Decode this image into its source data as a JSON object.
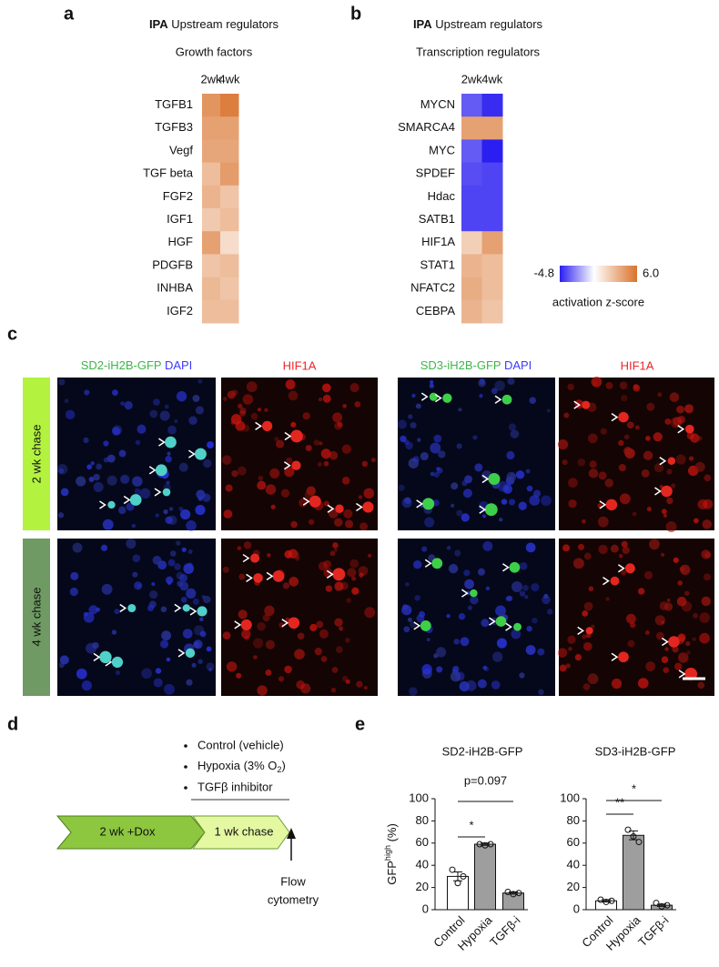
{
  "panel_letters": [
    "a",
    "b",
    "c",
    "d",
    "e"
  ],
  "chart_data": [
    {
      "type": "heatmap",
      "title_bold": "IPA",
      "title": "Upstream regulators",
      "subtitle": "Growth factors",
      "columns": [
        "2wk",
        "4wk"
      ],
      "rows": [
        "TGFB1",
        "TGFB3",
        "Vegf",
        "TGF beta",
        "FGF2",
        "IGF1",
        "HGF",
        "PDGFB",
        "INHBA",
        "IGF2"
      ],
      "values": [
        [
          4.5,
          5.5
        ],
        [
          4.0,
          4.0
        ],
        [
          3.8,
          3.8
        ],
        [
          2.8,
          4.2
        ],
        [
          3.2,
          2.5
        ],
        [
          2.3,
          2.8
        ],
        [
          4.0,
          1.5
        ],
        [
          2.5,
          2.8
        ],
        [
          3.0,
          2.5
        ],
        [
          2.8,
          2.8
        ]
      ],
      "zlim": [
        -4.8,
        6
      ],
      "colors": [
        "#2b1ef0",
        "#ffffff",
        "#d9722b"
      ]
    },
    {
      "type": "heatmap",
      "title_bold": "IPA",
      "title": "Upstream regulators",
      "subtitle": "Transcription regulators",
      "columns": [
        "2wk",
        "4wk"
      ],
      "rows": [
        "MYCN",
        "SMARCA4",
        "MYC",
        "SPDEF",
        "Hdac",
        "SATB1",
        "HIF1A",
        "STAT1",
        "NFATC2",
        "CEBPA"
      ],
      "values": [
        [
          -3.5,
          -4.5
        ],
        [
          4.0,
          4.0
        ],
        [
          -3.5,
          -4.8
        ],
        [
          -3.8,
          -4.0
        ],
        [
          -4.0,
          -4.0
        ],
        [
          -4.0,
          -4.0
        ],
        [
          2.0,
          4.0
        ],
        [
          3.2,
          2.8
        ],
        [
          3.5,
          2.8
        ],
        [
          3.2,
          2.5
        ]
      ],
      "zlim": [
        -4.8,
        6
      ],
      "colors": [
        "#2b1ef0",
        "#ffffff",
        "#d9722b"
      ],
      "zticks": [
        -4.8,
        {
          "value": 6,
          "label": "6.0"
        }
      ],
      "zlabel": "activation z-score"
    },
    {
      "type": "bar",
      "title": "SD2-iH2B-GFP",
      "categories": [
        "Control",
        "Hypoxia",
        "TGFβ-i"
      ],
      "values": [
        30,
        59,
        15
      ],
      "errors": [
        4,
        1,
        1
      ],
      "points": [
        [
          36,
          24,
          30
        ],
        [
          59,
          58,
          59
        ],
        [
          16,
          14,
          15
        ]
      ],
      "colors": [
        "#ffffff",
        "#9e9e9e",
        "#9e9e9e"
      ],
      "ylim": [
        0,
        100
      ],
      "yticks": [
        0,
        20,
        40,
        60,
        80,
        100
      ],
      "ylabel": [
        "GFP",
        "high",
        " (%)"
      ],
      "annotations": [
        {
          "text": "*",
          "between": [
            "Control",
            "Hypoxia"
          ]
        },
        {
          "text": "p=0.097",
          "between": [
            "Control",
            "TGFβ-i"
          ]
        }
      ]
    },
    {
      "type": "bar",
      "title": "SD3-iH2B-GFP",
      "categories": [
        "Control",
        "Hypoxia",
        "TGFβ-i"
      ],
      "values": [
        8,
        67,
        4
      ],
      "errors": [
        1,
        4,
        1
      ],
      "points": [
        [
          9,
          7,
          8
        ],
        [
          72,
          66,
          61
        ],
        [
          6,
          3,
          4
        ]
      ],
      "colors": [
        "#ffffff",
        "#9e9e9e",
        "#9e9e9e"
      ],
      "ylim": [
        0,
        100
      ],
      "yticks": [
        0,
        20,
        40,
        60,
        80,
        100
      ],
      "annotations": [
        {
          "text": "**",
          "between": [
            "Control",
            "Hypoxia"
          ]
        },
        {
          "text": "*",
          "between": [
            "Control",
            "TGFβ-i"
          ]
        }
      ]
    }
  ],
  "panel_c": {
    "columns": [
      [
        "SD2-iH2B-GFP",
        " DAPI"
      ],
      "HIF1A",
      [
        "SD3-iH2B-GFP",
        " DAPI"
      ],
      "HIF1A"
    ],
    "rows": [
      "2 wk chase",
      "4 wk chase"
    ]
  },
  "panel_d": {
    "conditions": [
      "Control (vehicle)",
      [
        "Hypoxia (3% O",
        "2",
        ")"
      ],
      "TGFβ inhibitor"
    ],
    "steps": [
      "2 wk +Dox",
      "1 wk chase"
    ],
    "readout": [
      "Flow",
      "cytometry"
    ]
  }
}
